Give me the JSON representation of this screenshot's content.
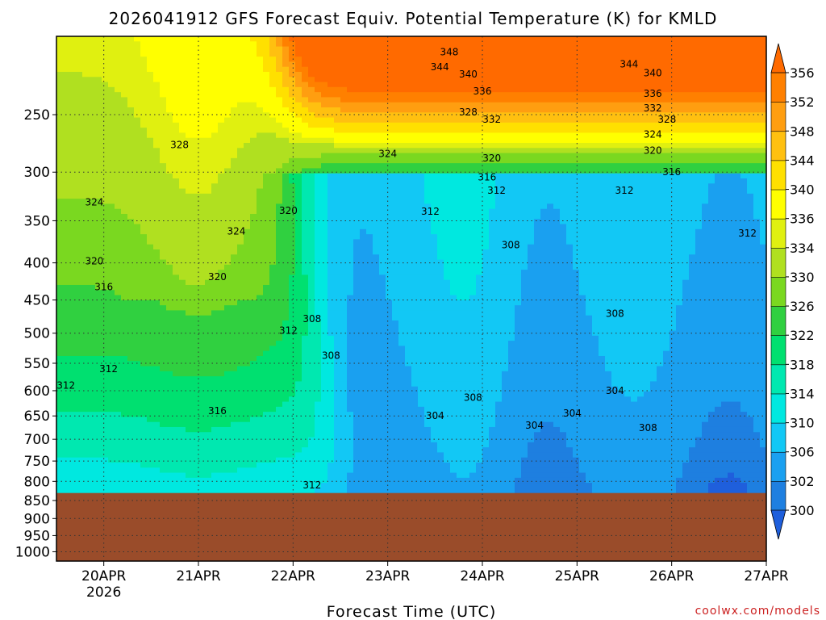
{
  "chart_data": {
    "type": "heatmap",
    "title": "2026041912 GFS Forecast Equiv. Potential Temperature (K) for KMLD",
    "xlabel": "Forecast Time (UTC)",
    "ylabel": "",
    "credit": "coolwx.com/models",
    "y_ticks": [
      "250",
      "300",
      "350",
      "400",
      "450",
      "500",
      "550",
      "600",
      "650",
      "700",
      "750",
      "800",
      "850",
      "900",
      "950",
      "1000"
    ],
    "y_tick_values": [
      250,
      300,
      350,
      400,
      450,
      500,
      550,
      600,
      650,
      700,
      750,
      800,
      850,
      900,
      950,
      1000
    ],
    "ylim": [
      195,
      1030
    ],
    "x_ticks": [
      "20APR",
      "21APR",
      "22APR",
      "23APR",
      "24APR",
      "25APR",
      "26APR",
      "27APR"
    ],
    "x_tick_values": [
      1,
      2,
      3,
      4,
      5,
      6,
      7,
      8
    ],
    "x_year": "2026",
    "xlim": [
      0.5,
      8.0
    ],
    "ground_level_hPa": 830,
    "colorbar": {
      "labels": [
        "300",
        "302",
        "306",
        "310",
        "314",
        "318",
        "322",
        "326",
        "330",
        "334",
        "336",
        "340",
        "344",
        "348",
        "352",
        "356"
      ],
      "bins": [
        296,
        300,
        302,
        306,
        310,
        314,
        318,
        322,
        326,
        330,
        334,
        336,
        340,
        344,
        348,
        352,
        356,
        360
      ],
      "colors": [
        "#1f5fdc",
        "#1e7fe0",
        "#1aa0f0",
        "#12c8f5",
        "#00e8e0",
        "#00e8b0",
        "#00e070",
        "#30d040",
        "#7ad820",
        "#b0e020",
        "#e0f010",
        "#ffff00",
        "#ffe000",
        "#ffc010",
        "#ff9e10",
        "#ff8000",
        "#ff6a00"
      ],
      "ground_color": "#9a4c2a"
    },
    "contour_labels": [
      {
        "text": "348",
        "t": 4.65,
        "p": 205
      },
      {
        "text": "344",
        "t": 4.55,
        "p": 215
      },
      {
        "text": "340",
        "t": 4.85,
        "p": 220
      },
      {
        "text": "336",
        "t": 5.0,
        "p": 232
      },
      {
        "text": "328",
        "t": 4.85,
        "p": 248
      },
      {
        "text": "332",
        "t": 5.1,
        "p": 254
      },
      {
        "text": "324",
        "t": 4.0,
        "p": 283
      },
      {
        "text": "320",
        "t": 5.1,
        "p": 287
      },
      {
        "text": "316",
        "t": 5.05,
        "p": 305
      },
      {
        "text": "312",
        "t": 5.15,
        "p": 318
      },
      {
        "text": "312",
        "t": 4.45,
        "p": 340
      },
      {
        "text": "308",
        "t": 5.3,
        "p": 378
      },
      {
        "text": "344",
        "t": 6.55,
        "p": 213
      },
      {
        "text": "340",
        "t": 6.8,
        "p": 219
      },
      {
        "text": "336",
        "t": 6.8,
        "p": 234
      },
      {
        "text": "332",
        "t": 6.8,
        "p": 245
      },
      {
        "text": "328",
        "t": 6.95,
        "p": 254
      },
      {
        "text": "324",
        "t": 6.8,
        "p": 266
      },
      {
        "text": "320",
        "t": 6.8,
        "p": 280
      },
      {
        "text": "316",
        "t": 7.0,
        "p": 300
      },
      {
        "text": "312",
        "t": 6.5,
        "p": 318
      },
      {
        "text": "312",
        "t": 7.8,
        "p": 364
      },
      {
        "text": "308",
        "t": 6.4,
        "p": 470
      },
      {
        "text": "304",
        "t": 6.4,
        "p": 600
      },
      {
        "text": "304",
        "t": 5.95,
        "p": 645
      },
      {
        "text": "304",
        "t": 5.55,
        "p": 670
      },
      {
        "text": "308",
        "t": 6.75,
        "p": 675
      },
      {
        "text": "308",
        "t": 4.9,
        "p": 613
      },
      {
        "text": "304",
        "t": 4.5,
        "p": 650
      },
      {
        "text": "308",
        "t": 3.4,
        "p": 537
      },
      {
        "text": "308",
        "t": 3.2,
        "p": 478
      },
      {
        "text": "312",
        "t": 2.95,
        "p": 496
      },
      {
        "text": "320",
        "t": 2.95,
        "p": 339
      },
      {
        "text": "324",
        "t": 2.4,
        "p": 362
      },
      {
        "text": "328",
        "t": 1.8,
        "p": 275
      },
      {
        "text": "324",
        "t": 0.9,
        "p": 330
      },
      {
        "text": "320",
        "t": 0.9,
        "p": 398
      },
      {
        "text": "316",
        "t": 1.0,
        "p": 432
      },
      {
        "text": "320",
        "t": 2.2,
        "p": 418
      },
      {
        "text": "312",
        "t": 1.05,
        "p": 560
      },
      {
        "text": "312",
        "t": 0.6,
        "p": 590
      },
      {
        "text": "316",
        "t": 2.2,
        "p": 640
      },
      {
        "text": "312",
        "t": 3.2,
        "p": 810
      }
    ]
  }
}
